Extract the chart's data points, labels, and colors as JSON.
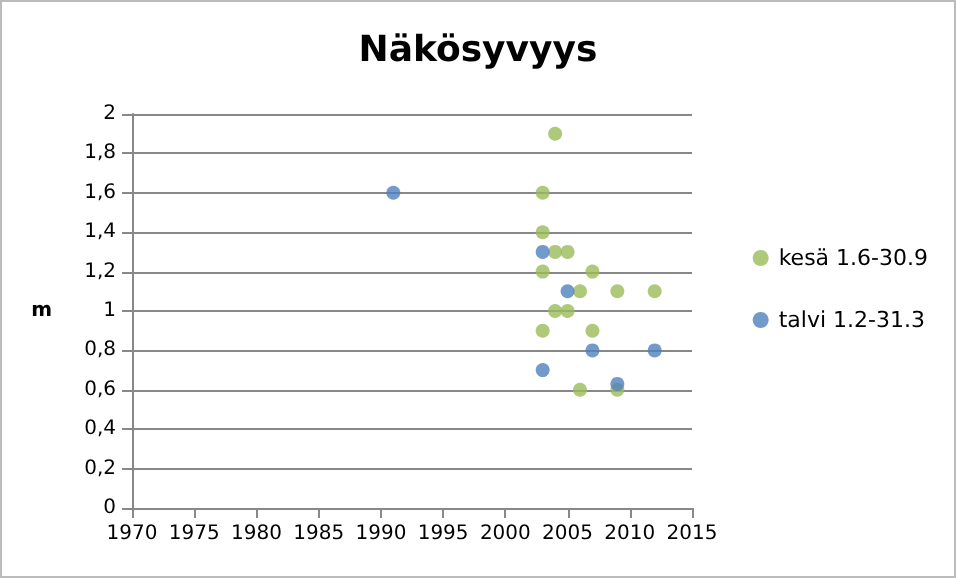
{
  "chart_data": {
    "type": "scatter",
    "title": "Näkösyvyys",
    "ylabel": "m",
    "series": [
      {
        "name": "kesä 1.6-30.9",
        "color": "#9bbb59",
        "x": [
          2004,
          2003,
          2003,
          2004,
          2005,
          2003,
          2007,
          2006,
          2009,
          2012,
          2004,
          2005,
          2003,
          2007,
          2006,
          2009
        ],
        "values": [
          1.9,
          1.6,
          1.4,
          1.3,
          1.3,
          1.2,
          1.2,
          1.1,
          1.1,
          1.1,
          1.0,
          1.0,
          0.9,
          0.9,
          0.6,
          0.6
        ]
      },
      {
        "name": "talvi 1.2-31.3",
        "color": "#4f81bd",
        "x": [
          1991,
          2003,
          2005,
          2007,
          2012,
          2003,
          2009
        ],
        "values": [
          1.6,
          1.3,
          1.1,
          0.8,
          0.8,
          0.7,
          0.63
        ]
      }
    ],
    "xlim": [
      1970,
      2015
    ],
    "xticks": [
      1970,
      1975,
      1980,
      1985,
      1990,
      1995,
      2000,
      2005,
      2010,
      2015
    ],
    "ylim": [
      0,
      2
    ],
    "yticks": [
      0,
      {
        "value": 0.2,
        "label": "0,2"
      },
      {
        "value": 0.4,
        "label": "0,4"
      },
      {
        "value": 0.6,
        "label": "0,6"
      },
      {
        "value": 0.8,
        "label": "0,8"
      },
      1,
      {
        "value": 1.2,
        "label": "1,2"
      },
      {
        "value": 1.4,
        "label": "1,4"
      },
      {
        "value": 1.6,
        "label": "1,6"
      },
      {
        "value": 1.8,
        "label": "1,8"
      },
      2
    ],
    "grid": "y",
    "legend": "right",
    "marker": "circle"
  }
}
